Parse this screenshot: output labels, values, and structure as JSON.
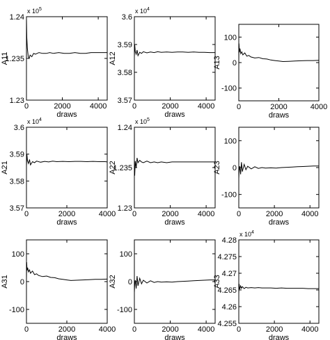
{
  "chart_data": [
    {
      "type": "line",
      "title": "",
      "xlabel": "draws",
      "ylabel": "A11",
      "multiplier": "x 10^5",
      "xlim": [
        0,
        4500
      ],
      "ylim": [
        1.23,
        1.24
      ],
      "xticks": [
        0,
        2000,
        4000
      ],
      "yticks": [
        1.23,
        1.235,
        1.24
      ],
      "xtick_labels": [
        "0",
        "2000",
        "4000"
      ],
      "ytick_labels": [
        "1.23",
        "1.235",
        "1.24"
      ],
      "grid": false,
      "x": [
        0,
        20,
        50,
        100,
        150,
        200,
        300,
        400,
        500,
        700,
        900,
        1100,
        1300,
        1500,
        1800,
        2100,
        2400,
        2700,
        3000,
        3300,
        3600,
        3900,
        4200,
        4500
      ],
      "values": [
        1.2398,
        1.2375,
        1.2362,
        1.2352,
        1.235,
        1.2354,
        1.2352,
        1.2356,
        1.2355,
        1.2357,
        1.2356,
        1.2356,
        1.2357,
        1.2356,
        1.2357,
        1.2356,
        1.2356,
        1.2357,
        1.2356,
        1.2356,
        1.2357,
        1.2357,
        1.2357,
        1.2357
      ]
    },
    {
      "type": "line",
      "title": "",
      "xlabel": "draws",
      "ylabel": "A12",
      "multiplier": "x 10^4",
      "xlim": [
        0,
        4500
      ],
      "ylim": [
        3.57,
        3.6
      ],
      "xticks": [
        0,
        2000,
        4000
      ],
      "yticks": [
        3.57,
        3.58,
        3.59,
        3.6
      ],
      "xtick_labels": [
        "0",
        "2000",
        "4000"
      ],
      "ytick_labels": [
        "3.57",
        "3.58",
        "3.59",
        "3.6"
      ],
      "grid": false,
      "x": [
        0,
        20,
        50,
        100,
        150,
        200,
        300,
        400,
        500,
        700,
        900,
        1100,
        1300,
        1500,
        1800,
        2100,
        2400,
        2700,
        3000,
        3300,
        3600,
        3900,
        4200,
        4500
      ],
      "values": [
        3.5855,
        3.59,
        3.5875,
        3.5865,
        3.588,
        3.586,
        3.5872,
        3.5868,
        3.5874,
        3.587,
        3.5873,
        3.5871,
        3.5874,
        3.5872,
        3.5873,
        3.5872,
        3.5873,
        3.5873,
        3.5872,
        3.5873,
        3.5872,
        3.5872,
        3.5871,
        3.5871
      ]
    },
    {
      "type": "line",
      "title": "",
      "xlabel": "draws",
      "ylabel": "A13",
      "multiplier": "",
      "xlim": [
        0,
        4000
      ],
      "ylim": [
        -150,
        150
      ],
      "xticks": [
        0,
        2000,
        4000
      ],
      "yticks": [
        -100,
        0,
        100
      ],
      "xtick_labels": [
        "0",
        "2000",
        "4000"
      ],
      "ytick_labels": [
        "-100",
        "0",
        "100"
      ],
      "grid": false,
      "x": [
        0,
        10,
        30,
        60,
        100,
        150,
        200,
        300,
        400,
        500,
        600,
        800,
        1000,
        1200,
        1400,
        1600,
        1800,
        2000,
        2200,
        2500,
        2800,
        3100,
        3400,
        3700,
        4000
      ],
      "values": [
        5,
        75,
        40,
        55,
        35,
        42,
        30,
        38,
        25,
        28,
        22,
        18,
        20,
        15,
        14,
        10,
        8,
        6,
        4,
        5,
        6,
        7,
        8,
        8,
        9
      ]
    },
    {
      "type": "line",
      "title": "",
      "xlabel": "draws",
      "ylabel": "A21",
      "multiplier": "x 10^4",
      "xlim": [
        0,
        4000
      ],
      "ylim": [
        3.57,
        3.6
      ],
      "xticks": [
        0,
        2000,
        4000
      ],
      "yticks": [
        3.57,
        3.58,
        3.59,
        3.6
      ],
      "xtick_labels": [
        "0",
        "2000",
        "4000"
      ],
      "ytick_labels": [
        "3.57",
        "3.58",
        "3.59",
        "3.6"
      ],
      "grid": false,
      "x": [
        0,
        20,
        50,
        100,
        150,
        200,
        300,
        400,
        500,
        700,
        900,
        1100,
        1300,
        1500,
        1800,
        2100,
        2400,
        2700,
        3000,
        3300,
        3600,
        3900,
        4000
      ],
      "values": [
        3.5855,
        3.59,
        3.5875,
        3.5865,
        3.588,
        3.586,
        3.5872,
        3.5868,
        3.5874,
        3.587,
        3.5873,
        3.5871,
        3.5874,
        3.5872,
        3.5873,
        3.5872,
        3.5873,
        3.5873,
        3.5872,
        3.5873,
        3.5872,
        3.5872,
        3.5871
      ]
    },
    {
      "type": "line",
      "title": "",
      "xlabel": "draws",
      "ylabel": "A22",
      "multiplier": "x 10^5",
      "xlim": [
        0,
        4500
      ],
      "ylim": [
        1.23,
        1.24
      ],
      "xticks": [
        0,
        2000,
        4000
      ],
      "yticks": [
        1.23,
        1.235,
        1.24
      ],
      "xtick_labels": [
        "0",
        "2000",
        "4000"
      ],
      "ytick_labels": [
        "1.23",
        "1.235",
        "1.24"
      ],
      "grid": false,
      "x": [
        0,
        20,
        50,
        100,
        150,
        200,
        300,
        400,
        500,
        700,
        900,
        1100,
        1300,
        1500,
        1800,
        2100,
        2400,
        2700,
        3000,
        3300,
        3600,
        3900,
        4200,
        4500
      ],
      "values": [
        1.2352,
        1.234,
        1.2358,
        1.235,
        1.2362,
        1.2356,
        1.2359,
        1.2357,
        1.2356,
        1.2358,
        1.2356,
        1.2357,
        1.2356,
        1.2357,
        1.2356,
        1.2357,
        1.2357,
        1.2357,
        1.2357,
        1.2357,
        1.2357,
        1.2357,
        1.2357,
        1.2357
      ]
    },
    {
      "type": "line",
      "title": "",
      "xlabel": "draws",
      "ylabel": "A23",
      "multiplier": "",
      "xlim": [
        0,
        4500
      ],
      "ylim": [
        -150,
        150
      ],
      "xticks": [
        0,
        2000,
        4000
      ],
      "yticks": [
        -100,
        0,
        100
      ],
      "xtick_labels": [
        "0",
        "2000",
        "4000"
      ],
      "ytick_labels": [
        "-100",
        "0",
        "100"
      ],
      "grid": false,
      "x": [
        0,
        20,
        50,
        100,
        150,
        200,
        300,
        400,
        500,
        700,
        900,
        1100,
        1300,
        1500,
        1800,
        2100,
        2400,
        2700,
        3000,
        3300,
        3600,
        3900,
        4200,
        4500
      ],
      "values": [
        -40,
        -10,
        5,
        -25,
        20,
        -15,
        12,
        -8,
        5,
        -5,
        3,
        -3,
        0,
        -2,
        -1,
        -2,
        0,
        1,
        2,
        3,
        4,
        5,
        6,
        6
      ]
    },
    {
      "type": "line",
      "title": "",
      "xlabel": "draws",
      "ylabel": "A31",
      "multiplier": "",
      "xlim": [
        0,
        4000
      ],
      "ylim": [
        -150,
        150
      ],
      "xticks": [
        0,
        2000,
        4000
      ],
      "yticks": [
        -100,
        0,
        100
      ],
      "xtick_labels": [
        "0",
        "2000",
        "4000"
      ],
      "ytick_labels": [
        "-100",
        "0",
        "100"
      ],
      "grid": false,
      "x": [
        0,
        10,
        30,
        60,
        100,
        150,
        200,
        300,
        400,
        500,
        600,
        800,
        1000,
        1200,
        1400,
        1600,
        1800,
        2000,
        2200,
        2500,
        2800,
        3100,
        3400,
        3700,
        4000
      ],
      "values": [
        5,
        70,
        40,
        50,
        35,
        42,
        30,
        38,
        25,
        28,
        22,
        18,
        20,
        15,
        14,
        10,
        8,
        6,
        4,
        5,
        6,
        7,
        8,
        8,
        9
      ]
    },
    {
      "type": "line",
      "title": "",
      "xlabel": "draws",
      "ylabel": "A32",
      "multiplier": "",
      "xlim": [
        0,
        4500
      ],
      "ylim": [
        -150,
        150
      ],
      "xticks": [
        0,
        2000,
        4000
      ],
      "yticks": [
        -100,
        0,
        100
      ],
      "xtick_labels": [
        "0",
        "2000",
        "4000"
      ],
      "ytick_labels": [
        "-100",
        "0",
        "100"
      ],
      "grid": false,
      "x": [
        0,
        20,
        50,
        100,
        150,
        200,
        300,
        400,
        500,
        700,
        900,
        1100,
        1300,
        1500,
        1800,
        2100,
        2400,
        2700,
        3000,
        3300,
        3600,
        3900,
        4200,
        4500
      ],
      "values": [
        -40,
        -10,
        5,
        -25,
        20,
        -15,
        12,
        -8,
        5,
        -5,
        3,
        -3,
        0,
        -2,
        -1,
        -2,
        0,
        1,
        2,
        3,
        4,
        5,
        6,
        6
      ]
    },
    {
      "type": "line",
      "title": "",
      "xlabel": "draws",
      "ylabel": "A33",
      "multiplier": "x 10^4",
      "xlim": [
        0,
        4500
      ],
      "ylim": [
        4.255,
        4.28
      ],
      "xticks": [
        0,
        2000,
        4000
      ],
      "yticks": [
        4.255,
        4.26,
        4.265,
        4.27,
        4.275,
        4.28
      ],
      "xtick_labels": [
        "0",
        "2000",
        "4000"
      ],
      "ytick_labels": [
        "4.255",
        "4.26",
        "4.265",
        "4.27",
        "4.275",
        "4.28"
      ],
      "grid": false,
      "x": [
        0,
        20,
        50,
        100,
        150,
        200,
        300,
        400,
        500,
        700,
        900,
        1100,
        1300,
        1500,
        1800,
        2100,
        2400,
        2700,
        3000,
        3300,
        3600,
        3900,
        4200,
        4500
      ],
      "values": [
        4.264,
        4.2668,
        4.2652,
        4.2662,
        4.2655,
        4.266,
        4.2654,
        4.2658,
        4.2656,
        4.2657,
        4.2656,
        4.2657,
        4.2656,
        4.2656,
        4.2656,
        4.2655,
        4.2656,
        4.2655,
        4.2655,
        4.2655,
        4.2655,
        4.2654,
        4.2654,
        4.2654
      ]
    }
  ]
}
